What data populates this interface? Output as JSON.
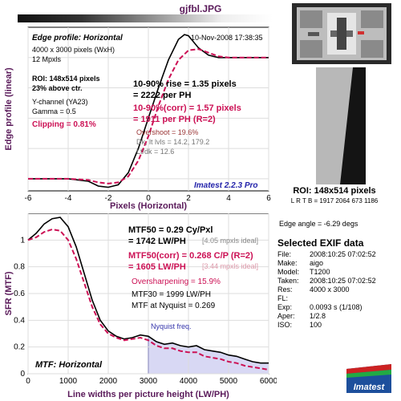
{
  "title": "gjfbl.JPG",
  "timestamp": "10-Nov-2008 17:38:35",
  "edge_panel": {
    "heading": "Edge profile: Horizontal",
    "info": [
      "4000 x 3000 pixels (WxH)",
      "12 Mpxls"
    ],
    "roi_info": [
      "ROI: 148x514 pixels",
      "23% above ctr."
    ],
    "channel_info": [
      "Y-channel  (YA23)",
      "Gamma = 0.5"
    ],
    "clipping": "Clipping =  0.81%",
    "rise": "10-90% rise = 1.35 pixels",
    "rise_ph": "= 2222 per PH",
    "rise_corr": "10-90%(corr) = 1.57 pixels",
    "rise_corr_ph": "= 1911 per PH  (R=2)",
    "overshoot": "Overshoot = 19.6%",
    "levels": "Dk, lt lvls = 14.2, 179.2",
    "ltdk": "Lt/dk = 12.6",
    "brand": "Imatest 2.2.3 Pro"
  },
  "mtf_panel": {
    "heading": "MTF: Horizontal",
    "mtf50": "MTF50 = 0.29 Cy/Pxl",
    "mtf50_lw": "= 1742 LW/PH",
    "mtf50_ideal": "[4.05 mpxls ideal]",
    "mtf50_corr": "MTF50(corr) = 0.268 C/P  (R=2)",
    "mtf50_corr_lw": "= 1605 LW/PH",
    "mtf50_corr_ideal": "[3.44 mpxls ideal]",
    "oversharpening": "Oversharpening = 15.9%",
    "mtf30": "MTF30 = 1999 LW/PH",
    "nyquist_value": "MTF at Nyquist = 0.269",
    "nyquist_label": "Nyquist freq."
  },
  "chart_data": [
    {
      "type": "line",
      "xlabel": "Pixels (Horizontal)",
      "ylabel": "Edge profile (linear)",
      "xlim": [
        -6,
        6
      ],
      "ylim": [
        -0.1,
        1.25
      ],
      "xticks": [
        -6,
        -4,
        -2,
        0,
        2,
        4,
        6
      ],
      "grid": true,
      "series": [
        {
          "style": "solid",
          "color": "#000000",
          "x": [
            -6,
            -5,
            -4,
            -3,
            -2.5,
            -2,
            -1.5,
            -1,
            -0.5,
            0,
            0.5,
            1,
            1.5,
            1.8,
            2,
            2.5,
            3,
            3.5,
            4,
            5,
            6
          ],
          "y": [
            0.0,
            0.0,
            0.0,
            -0.02,
            -0.06,
            -0.07,
            -0.05,
            0.05,
            0.25,
            0.5,
            0.75,
            0.98,
            1.15,
            1.19,
            1.18,
            1.08,
            1.02,
            1.0,
            1.0,
            1.0,
            1.0
          ]
        },
        {
          "style": "dashed",
          "color": "#cc1155",
          "x": [
            -6,
            -5,
            -4,
            -3,
            -2.5,
            -2,
            -1.5,
            -1,
            -0.5,
            0,
            0.5,
            1,
            1.5,
            2,
            2.5,
            3,
            3.5,
            4,
            5,
            6
          ],
          "y": [
            0.0,
            0.0,
            0.0,
            -0.01,
            -0.03,
            -0.04,
            -0.03,
            0.02,
            0.15,
            0.35,
            0.6,
            0.82,
            0.98,
            1.06,
            1.07,
            1.04,
            1.01,
            1.0,
            1.0,
            1.0
          ]
        }
      ]
    },
    {
      "type": "line",
      "xlabel": "Line widths per picture height (LW/PH)",
      "ylabel": "SFR (MTF)",
      "xlim": [
        0,
        6000
      ],
      "ylim": [
        0,
        1.2
      ],
      "xticks": [
        0,
        1000,
        2000,
        3000,
        4000,
        5000,
        6000
      ],
      "yticks": [
        0,
        0.2,
        0.4,
        0.6,
        0.8,
        1
      ],
      "nyquist_x": 3000,
      "grid": true,
      "series": [
        {
          "style": "solid",
          "color": "#000000",
          "x": [
            0,
            200,
            400,
            600,
            800,
            1000,
            1200,
            1400,
            1600,
            1800,
            2000,
            2200,
            2400,
            2600,
            2800,
            3000,
            3200,
            3400,
            3600,
            3800,
            4000,
            4200,
            4400,
            4600,
            4800,
            5000,
            5200,
            5400,
            5600,
            5800,
            6000
          ],
          "y": [
            1.0,
            1.05,
            1.12,
            1.16,
            1.17,
            1.1,
            0.95,
            0.75,
            0.55,
            0.4,
            0.32,
            0.28,
            0.26,
            0.27,
            0.29,
            0.28,
            0.24,
            0.22,
            0.23,
            0.21,
            0.2,
            0.21,
            0.18,
            0.17,
            0.16,
            0.14,
            0.13,
            0.11,
            0.09,
            0.08,
            0.08
          ]
        },
        {
          "style": "dashed",
          "color": "#cc1155",
          "x": [
            0,
            200,
            400,
            600,
            800,
            1000,
            1200,
            1400,
            1600,
            1800,
            2000,
            2200,
            2400,
            2600,
            2800,
            3000,
            3200,
            3400,
            3600,
            3800,
            4000,
            4200,
            4400,
            4600,
            4800,
            5000,
            5200,
            5400,
            5600,
            5800,
            6000
          ],
          "y": [
            1.0,
            1.02,
            1.06,
            1.08,
            1.07,
            1.0,
            0.86,
            0.68,
            0.5,
            0.37,
            0.3,
            0.27,
            0.25,
            0.26,
            0.27,
            0.25,
            0.21,
            0.19,
            0.19,
            0.17,
            0.16,
            0.16,
            0.13,
            0.12,
            0.11,
            0.09,
            0.08,
            0.06,
            0.05,
            0.04,
            0.03
          ]
        }
      ]
    }
  ],
  "roi": {
    "label": "ROI: 148x514 pixels",
    "coords": "L R T B = 1917 2064  673 1186"
  },
  "edge_angle": "Edge angle = -6.29 degs",
  "exif": {
    "title": "Selected EXIF data",
    "rows": [
      {
        "k": "File:",
        "v": "2008:10:25 07:02:52"
      },
      {
        "k": "Make:",
        "v": "aigo"
      },
      {
        "k": "Model:",
        "v": "T1200"
      },
      {
        "k": "Taken:",
        "v": "2008:10:25 07:02:52"
      },
      {
        "k": "Res:",
        "v": "4000 x 3000"
      },
      {
        "k": "FL:",
        "v": ""
      },
      {
        "k": "Exp:",
        "v": "0.0093 s  (1/108)"
      },
      {
        "k": "Aper:",
        "v": "1/2.8"
      },
      {
        "k": "ISO:",
        "v": "100"
      }
    ]
  },
  "logo_text": "Imatest",
  "colors": {
    "title": "#5a1a5a",
    "corr": "#cc1155",
    "brand": "#2222aa",
    "nyquist_fill": "#d8d8f4",
    "nyquist_line": "#3333aa"
  }
}
